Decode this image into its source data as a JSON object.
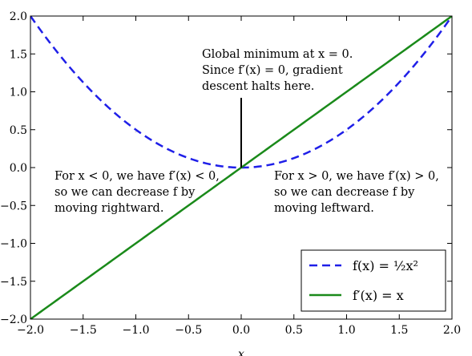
{
  "chart_data": {
    "type": "line",
    "xlabel": "x",
    "ylabel": "",
    "xlim": [
      -2.0,
      2.0
    ],
    "ylim": [
      -2.0,
      2.0
    ],
    "xticks": [
      "−2.0",
      "−1.5",
      "−1.0",
      "−0.5",
      "0.0",
      "0.5",
      "1.0",
      "1.5",
      "2.0"
    ],
    "yticks": [
      "−2.0",
      "−1.5",
      "−1.0",
      "−0.5",
      "0.0",
      "0.5",
      "1.0",
      "1.5",
      "2.0"
    ],
    "x_tick_values": [
      -2.0,
      -1.5,
      -1.0,
      -0.5,
      0.0,
      0.5,
      1.0,
      1.5,
      2.0
    ],
    "y_tick_values": [
      -2.0,
      -1.5,
      -1.0,
      -0.5,
      0.0,
      0.5,
      1.0,
      1.5,
      2.0
    ],
    "grid": false,
    "legend_position": "lower-right",
    "series": [
      {
        "name": "f(x) = ½x²",
        "function": "0.5*x^2",
        "style": "dashed",
        "color": "#1f1fe8",
        "x": [
          -2.0,
          -1.5,
          -1.0,
          -0.5,
          0.0,
          0.5,
          1.0,
          1.5,
          2.0
        ],
        "y": [
          2.0,
          1.125,
          0.5,
          0.125,
          0.0,
          0.125,
          0.5,
          1.125,
          2.0
        ]
      },
      {
        "name": "f′(x) = x",
        "function": "x",
        "style": "solid",
        "color": "#1a8a1a",
        "x": [
          -2.0,
          -1.5,
          -1.0,
          -0.5,
          0.0,
          0.5,
          1.0,
          1.5,
          2.0
        ],
        "y": [
          -2.0,
          -1.5,
          -1.0,
          -0.5,
          0.0,
          0.5,
          1.0,
          1.5,
          2.0
        ]
      }
    ],
    "annotations": [
      {
        "lines": [
          "Global minimum at x = 0.",
          "Since f′(x) = 0, gradient",
          "descent halts here."
        ],
        "arrow_to": [
          0.0,
          0.0
        ]
      },
      {
        "lines": [
          "For x < 0, we have f′(x) < 0,",
          "so we can decrease f by",
          "moving rightward."
        ],
        "arrow_to": [
          -1.0,
          0.5
        ]
      },
      {
        "lines": [
          "For x > 0, we have f′(x) > 0,",
          "so we can decrease f by",
          "moving leftward."
        ],
        "arrow_to": [
          1.0,
          0.5
        ]
      }
    ]
  }
}
